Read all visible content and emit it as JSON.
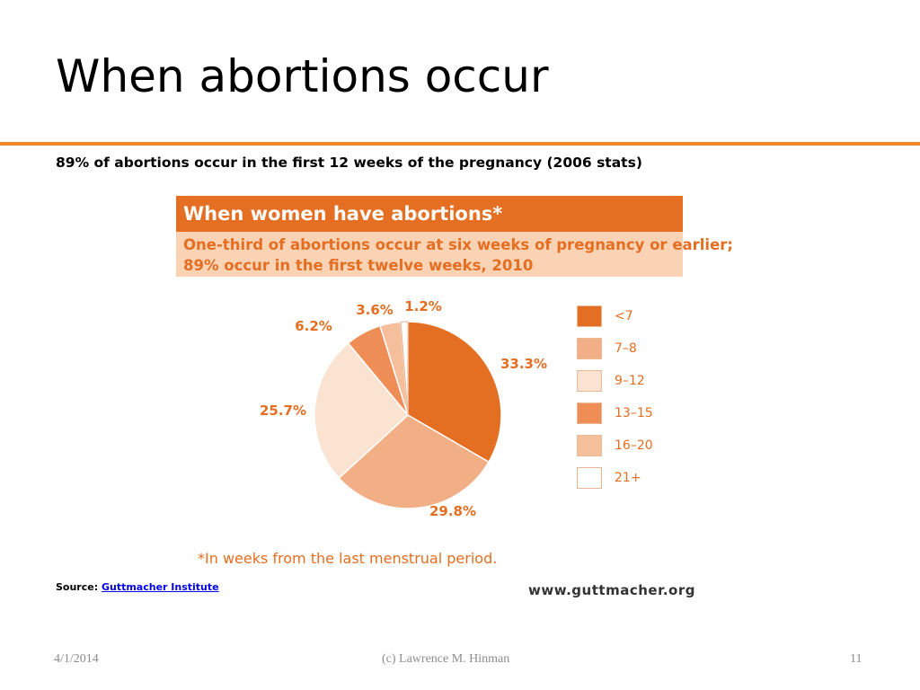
{
  "slide": {
    "title": "When abortions occur",
    "subtitle": "89% of abortions occur in the first 12 weeks of the pregnancy (2006 stats)",
    "source_prefix": "Source:",
    "source_link": "Guttmacher Institute",
    "footer_date": "4/1/2014",
    "footer_author": "(c) Lawrence M. Hinman",
    "footer_page": "11",
    "accent_color": "#f08a24"
  },
  "chart_data": {
    "type": "pie",
    "title": "When women have abortions*",
    "subtitle_lines": [
      "One-third of abortions occur at six weeks of pregnancy or earlier;",
      "89% occur in the first twelve weeks, 2010"
    ],
    "slices": [
      {
        "label": "<7",
        "value": 33.3,
        "display": "33.3%",
        "color": "#e46e22"
      },
      {
        "label": "7–8",
        "value": 29.8,
        "display": "29.8%",
        "color": "#f2ae84"
      },
      {
        "label": "9–12",
        "value": 25.7,
        "display": "25.7%",
        "color": "#fbe3d2"
      },
      {
        "label": "13–15",
        "value": 6.2,
        "display": "6.2%",
        "color": "#ef8d57"
      },
      {
        "label": "16–20",
        "value": 3.6,
        "display": "3.6%",
        "color": "#f5bf9c"
      },
      {
        "label": "21+",
        "value": 1.2,
        "display": "1.2%",
        "color": "#ffffff"
      }
    ],
    "footnote": "*In weeks from the last menstrual period.",
    "website": "www.guttmacher.org"
  }
}
